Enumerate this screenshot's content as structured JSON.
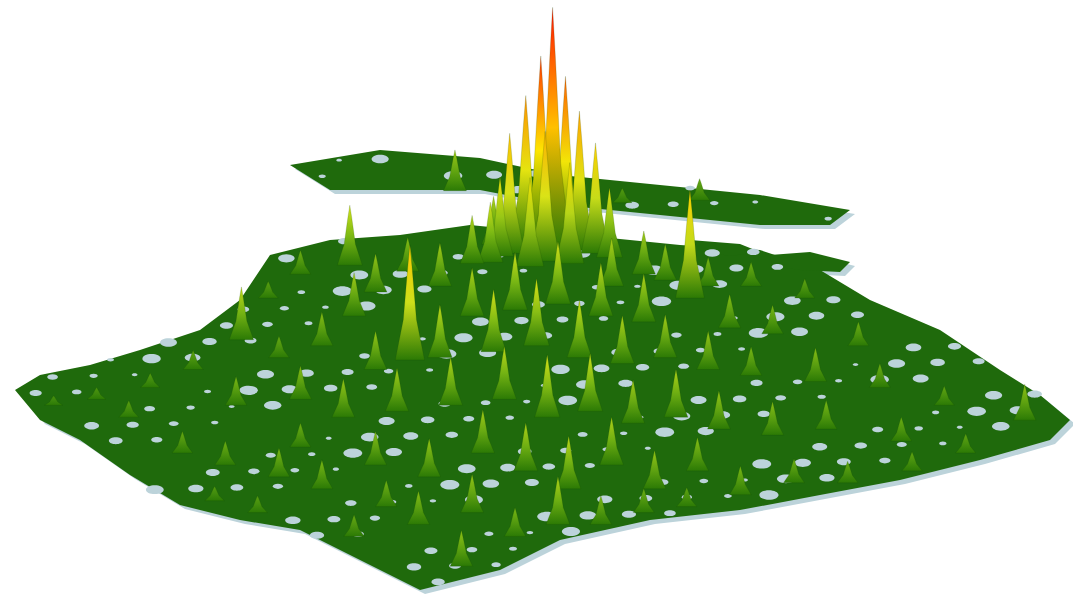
{
  "chart_data": {
    "type": "surface3d",
    "tick_labels": false,
    "grid": false,
    "xlim": [
      0,
      100
    ],
    "ylim": [
      0,
      100
    ],
    "zlim": [
      0,
      100
    ],
    "x": [
      42.4,
      65.2,
      58,
      46,
      49,
      50.4,
      52.7,
      51.5,
      54,
      47.5,
      55.5,
      46.6,
      56.8,
      50.8,
      45.7,
      53.1,
      44,
      32.6,
      49.4,
      38,
      28,
      60,
      62,
      41,
      66,
      70,
      57,
      35,
      64.3,
      25,
      75,
      52,
      48,
      33,
      44,
      56,
      60,
      68,
      72,
      22.5,
      30,
      50,
      80,
      46,
      26,
      41,
      54,
      62,
      38.2,
      58,
      18,
      35,
      66,
      70,
      76,
      14,
      82,
      9,
      28,
      47,
      5,
      22,
      42,
      88,
      37,
      55,
      12,
      32,
      51,
      63,
      95.5,
      59,
      67,
      77,
      72,
      84,
      28,
      45,
      90,
      17,
      21,
      35,
      57,
      49,
      65,
      85,
      26,
      40,
      74,
      79,
      30,
      53,
      61,
      69,
      20,
      36,
      64,
      44,
      24,
      60,
      39,
      52,
      56,
      33,
      48,
      43
    ],
    "y": [
      68,
      66.4,
      66,
      59,
      59,
      58.8,
      58.6,
      58.5,
      58,
      57.5,
      57.5,
      57,
      56.8,
      56.2,
      56,
      55.8,
      55.8,
      55.5,
      55.3,
      54.5,
      54,
      54,
      53,
      52,
      52,
      52,
      52,
      51,
      50,
      50,
      50,
      49,
      48,
      47,
      47,
      47,
      46,
      45,
      44,
      43,
      42,
      42,
      42,
      41,
      40,
      40,
      40,
      40,
      39.6,
      39,
      38,
      38,
      38,
      37,
      36,
      35,
      35,
      33,
      33,
      33,
      32,
      32,
      32,
      32,
      31,
      31,
      30,
      30,
      30,
      30,
      29.5,
      29,
      28,
      28,
      27,
      26,
      25,
      24,
      24,
      24,
      22,
      22,
      22,
      21,
      21,
      21,
      20,
      20,
      19,
      19,
      18,
      18,
      18,
      17,
      16,
      15,
      15,
      14,
      14,
      14,
      12,
      12,
      12,
      10,
      10,
      5
    ],
    "values": [
      17,
      9,
      6,
      20,
      62,
      79,
      71,
      100,
      58,
      50,
      46,
      33,
      29,
      54,
      25,
      42,
      20,
      25,
      37,
      14,
      10,
      18,
      15,
      18,
      12,
      10,
      20,
      16,
      45,
      7,
      8,
      26,
      24,
      18,
      20,
      22,
      20,
      14,
      12,
      22,
      14,
      28,
      10,
      26,
      9,
      22,
      24,
      18,
      48,
      20,
      8,
      16,
      16,
      12,
      14,
      6,
      10,
      5,
      14,
      22,
      4,
      12,
      20,
      8,
      18,
      24,
      7,
      16,
      26,
      20,
      15,
      18,
      16,
      12,
      14,
      10,
      10,
      18,
      8,
      9,
      10,
      14,
      20,
      20,
      14,
      8,
      12,
      16,
      10,
      9,
      12,
      22,
      16,
      12,
      6,
      11,
      8,
      16,
      7,
      10,
      14,
      20,
      12,
      9,
      12,
      15
    ]
  }
}
